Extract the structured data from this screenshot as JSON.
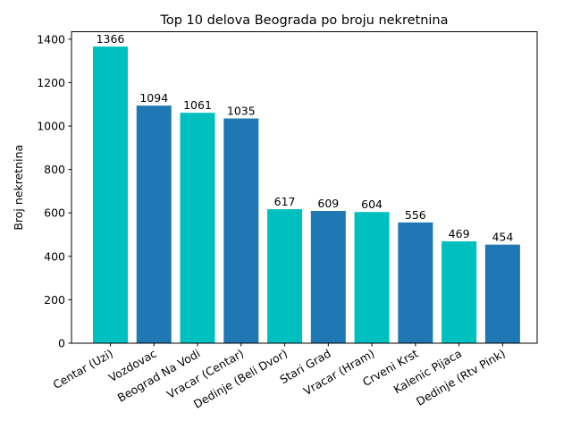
{
  "chart_data": {
    "type": "bar",
    "title": "Top 10 delova Beograda po broju nekretnina",
    "xlabel": "",
    "ylabel": "Broj nekretnina",
    "categories": [
      "Centar (Uzi)",
      "Vozdovac",
      "Beograd Na Vodi",
      "Vracar (Centar)",
      "Dedinje (Beli Dvor)",
      "Stari Grad",
      "Vracar (Hram)",
      "Crveni Krst",
      "Kalenic Pijaca",
      "Dedinje (Rtv Pink)"
    ],
    "values": [
      1366,
      1094,
      1061,
      1035,
      617,
      609,
      604,
      556,
      469,
      454
    ],
    "bar_colors": [
      "#00bfbf",
      "#1f77b4",
      "#00bfbf",
      "#1f77b4",
      "#00bfbf",
      "#1f77b4",
      "#00bfbf",
      "#1f77b4",
      "#00bfbf",
      "#1f77b4"
    ],
    "ylim": [
      0,
      1434.3
    ],
    "yticks": [
      0,
      200,
      400,
      600,
      800,
      1000,
      1200,
      1400
    ],
    "grid": false,
    "legend": "none"
  }
}
